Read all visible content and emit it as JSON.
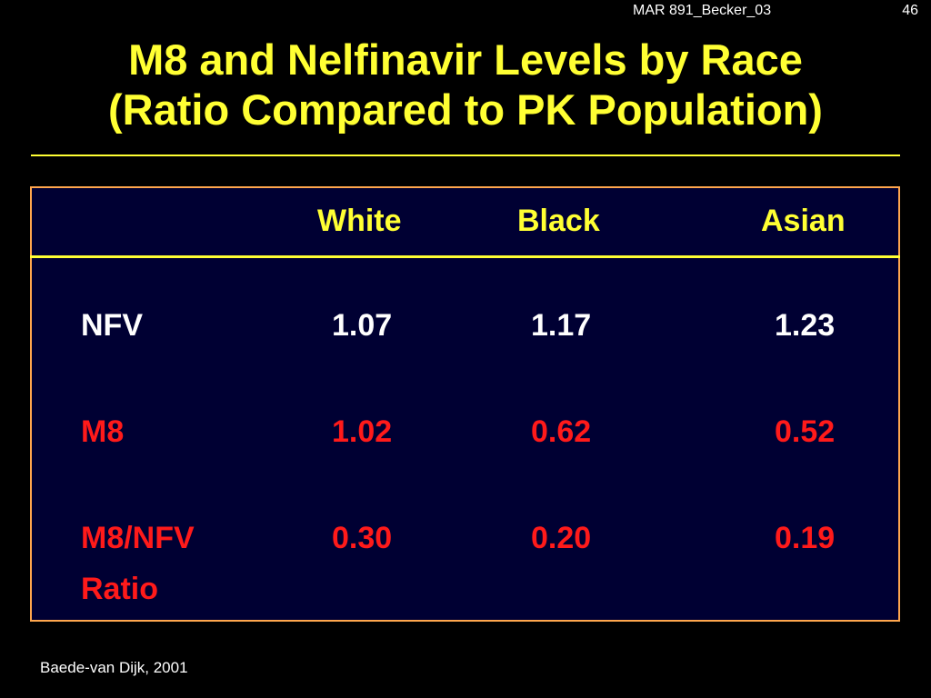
{
  "header": {
    "code": "MAR 891_Becker_03",
    "slide_number": "46"
  },
  "title": {
    "line1": "M8 and Nelfinavir Levels by Race",
    "line2": "(Ratio Compared to PK Population)"
  },
  "table": {
    "columns": [
      "White",
      "Black",
      "Asian"
    ],
    "rows": [
      {
        "label": "NFV",
        "values": [
          "1.07",
          "1.17",
          "1.23"
        ]
      },
      {
        "label": "M8",
        "values": [
          "1.02",
          "0.62",
          "0.52"
        ]
      },
      {
        "label_line1": "M8/NFV",
        "label_line2": "Ratio",
        "values": [
          "0.30",
          "0.20",
          "0.19"
        ]
      }
    ]
  },
  "footer": {
    "source": "Baede-van Dijk, 2001"
  },
  "colors": {
    "background": "#000000",
    "table_background": "#000033",
    "title": "#ffff33",
    "border": "#ffa64d",
    "red_rows": "#ff1a1a",
    "white_rows": "#ffffff"
  }
}
